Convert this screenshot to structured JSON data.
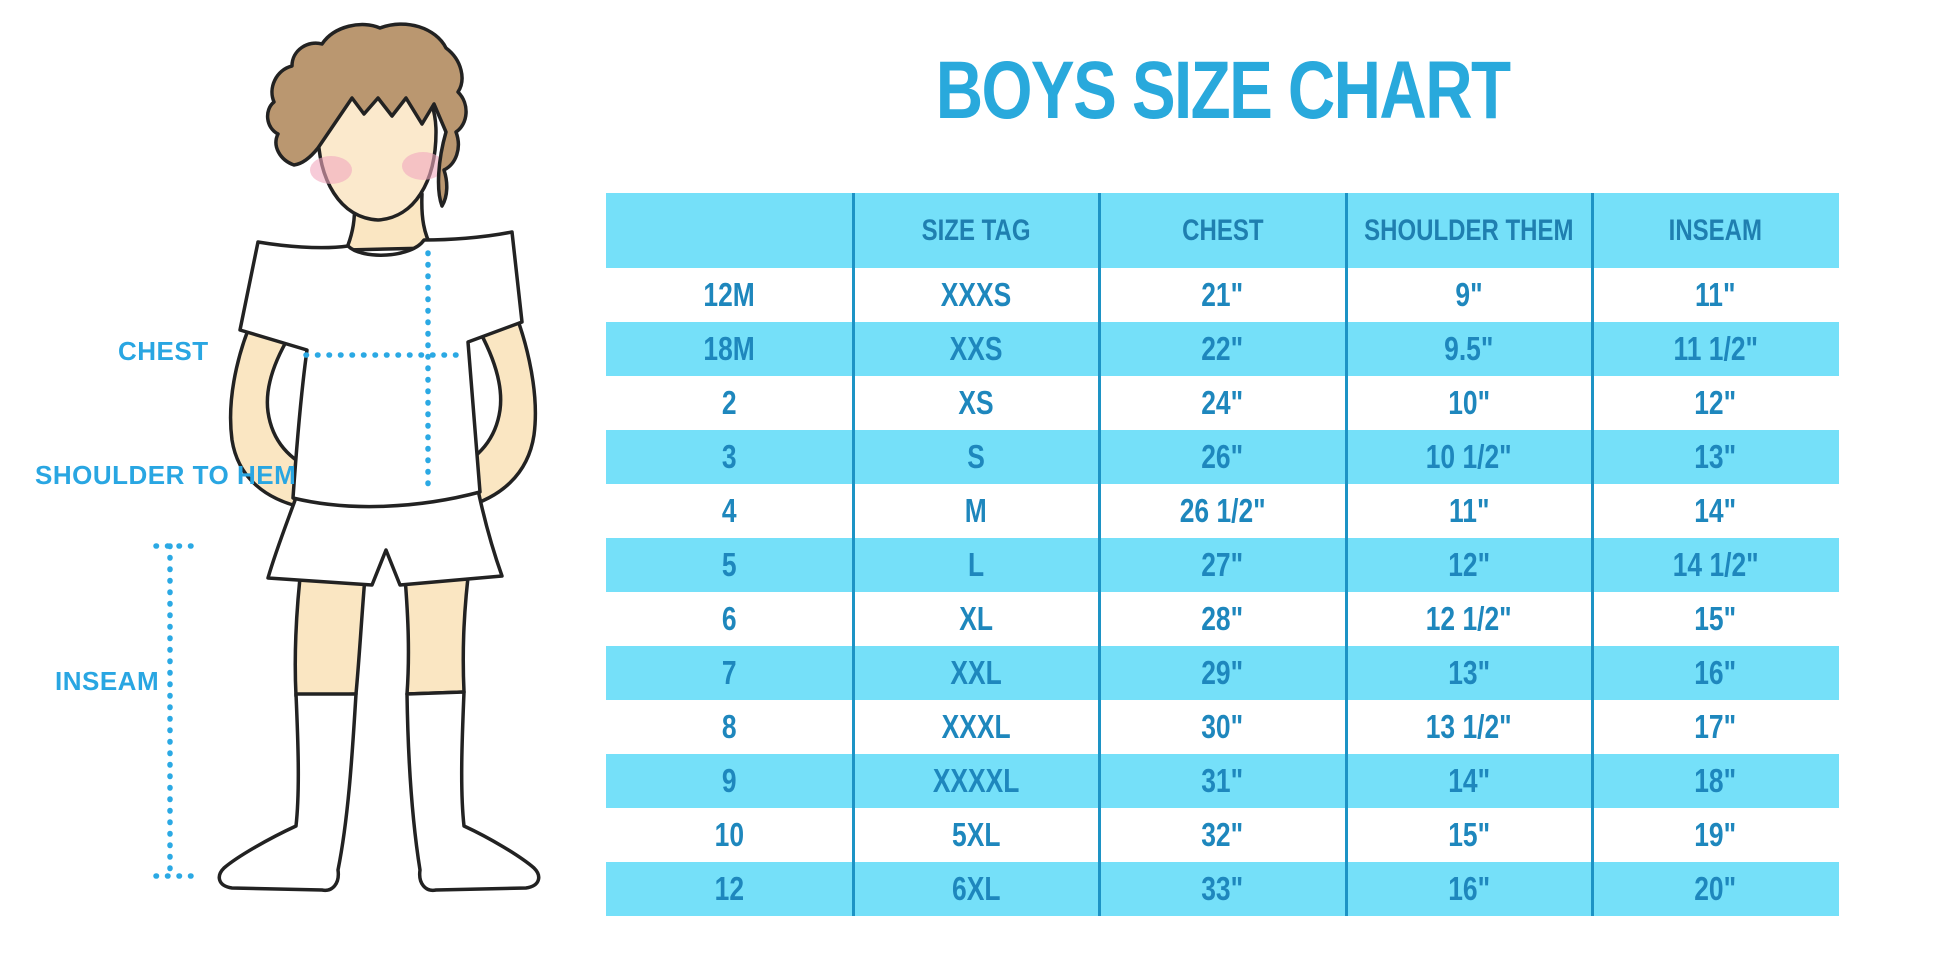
{
  "title": "BOYS SIZE CHART",
  "figure": {
    "labels": {
      "chest": "CHEST",
      "shoulder_to_hem": "SHOULDER TO HEM",
      "inseam": "INSEAM"
    }
  },
  "colors": {
    "title_blue": "#29A9DC",
    "label_blue": "#29A6E2",
    "dotted_line_blue": "#2BA9E4",
    "row_stripe_blue": "#75E0F9",
    "table_divider_blue": "#1D93C5",
    "header_text_blue": "#1F7FB0",
    "body_text_blue": "#1E87BD",
    "skin": "#FAE6C2",
    "hair": "#BA9770",
    "blush": "#F2A9BE"
  },
  "chart_data": {
    "type": "table",
    "title": "BOYS SIZE CHART",
    "columns": [
      "",
      "SIZE TAG",
      "CHEST",
      "SHOULDER THEM",
      "INSEAM"
    ],
    "rows": [
      [
        "12M",
        "XXXS",
        "21\"",
        "9\"",
        "11\""
      ],
      [
        "18M",
        "XXS",
        "22\"",
        "9.5\"",
        "11 1/2\""
      ],
      [
        "2",
        "XS",
        "24\"",
        "10\"",
        "12\""
      ],
      [
        "3",
        "S",
        "26\"",
        "10 1/2\"",
        "13\""
      ],
      [
        "4",
        "M",
        "26 1/2\"",
        "11\"",
        "14\""
      ],
      [
        "5",
        "L",
        "27\"",
        "12\"",
        "14 1/2\""
      ],
      [
        "6",
        "XL",
        "28\"",
        "12 1/2\"",
        "15\""
      ],
      [
        "7",
        "XXL",
        "29\"",
        "13\"",
        "16\""
      ],
      [
        "8",
        "XXXL",
        "30\"",
        "13 1/2\"",
        "17\""
      ],
      [
        "9",
        "XXXXL",
        "31\"",
        "14\"",
        "18\""
      ],
      [
        "10",
        "5XL",
        "32\"",
        "15\"",
        "19\""
      ],
      [
        "12",
        "6XL",
        "33\"",
        "16\"",
        "20\""
      ]
    ],
    "striped_row_indices": [
      1,
      3,
      5,
      7,
      9,
      11
    ],
    "legend_position": "none",
    "grid": "vertical-dividers-only"
  }
}
